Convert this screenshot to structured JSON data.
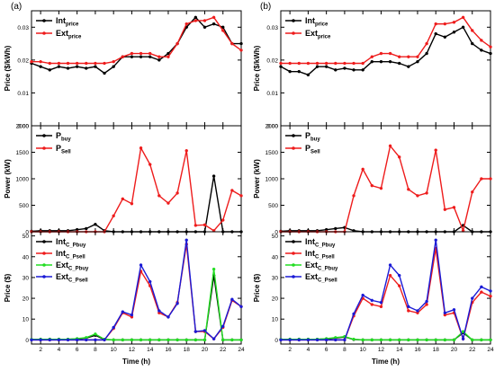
{
  "colors": {
    "black": "#000000",
    "red": "#ee1c1c",
    "green": "#22dd22",
    "blue": "#1a1ad6"
  },
  "chart_data": [
    {
      "type": "line",
      "panel_label": "(a)",
      "row": "price",
      "ylabel": "Price ($/kWh)",
      "ylim": [
        0,
        0.035
      ],
      "ytick_labels": [
        "0.00",
        "0.01",
        "0.02",
        "0.03"
      ],
      "xlim": [
        1,
        24
      ],
      "xticks": [
        2,
        4,
        6,
        8,
        10,
        12,
        14,
        16,
        18,
        20,
        22,
        24
      ],
      "legend": [
        {
          "main": "Int",
          "sub": "price"
        },
        {
          "main": "Ext",
          "sub": "price"
        }
      ],
      "series": [
        {
          "name": "Int_price",
          "color": "black",
          "values": [
            0.019,
            0.018,
            0.017,
            0.018,
            0.0175,
            0.018,
            0.0175,
            0.018,
            0.016,
            0.018,
            0.021,
            0.021,
            0.021,
            0.021,
            0.02,
            0.022,
            0.025,
            0.03,
            0.033,
            0.03,
            0.031,
            0.03,
            0.025,
            0.025
          ]
        },
        {
          "name": "Ext_price",
          "color": "red",
          "values": [
            0.0195,
            0.0195,
            0.019,
            0.019,
            0.019,
            0.019,
            0.019,
            0.019,
            0.019,
            0.0195,
            0.021,
            0.022,
            0.022,
            0.022,
            0.021,
            0.021,
            0.025,
            0.031,
            0.032,
            0.032,
            0.033,
            0.029,
            0.025,
            0.023
          ]
        }
      ]
    },
    {
      "type": "line",
      "panel_label": "(b)",
      "row": "price",
      "ylabel": "Price ($/kWh)",
      "ylim": [
        0,
        0.035
      ],
      "ytick_labels": [
        "0.00",
        "0.01",
        "0.02",
        "0.03"
      ],
      "xlim": [
        1,
        24
      ],
      "xticks": [
        2,
        4,
        6,
        8,
        10,
        12,
        14,
        16,
        18,
        20,
        22,
        24
      ],
      "legend": [
        {
          "main": "Int",
          "sub": "price"
        },
        {
          "main": "Ext",
          "sub": "price"
        }
      ],
      "series": [
        {
          "name": "Int_price",
          "color": "black",
          "values": [
            0.018,
            0.0165,
            0.0165,
            0.0155,
            0.018,
            0.018,
            0.017,
            0.0175,
            0.017,
            0.017,
            0.0195,
            0.0195,
            0.0195,
            0.019,
            0.018,
            0.0195,
            0.022,
            0.028,
            0.027,
            0.0285,
            0.03,
            0.025,
            0.023,
            0.022
          ]
        },
        {
          "name": "Ext_price",
          "color": "red",
          "values": [
            0.019,
            0.019,
            0.019,
            0.019,
            0.019,
            0.019,
            0.019,
            0.019,
            0.019,
            0.019,
            0.021,
            0.022,
            0.022,
            0.021,
            0.021,
            0.021,
            0.025,
            0.031,
            0.031,
            0.0315,
            0.033,
            0.029,
            0.026,
            0.024
          ]
        }
      ]
    },
    {
      "type": "line",
      "row": "power",
      "ylabel": "Power (kW)",
      "ylim": [
        0,
        2000
      ],
      "ytick_labels": [
        "0",
        "500",
        "1000",
        "1500",
        "2000"
      ],
      "xlim": [
        1,
        24
      ],
      "xticks": [
        2,
        4,
        6,
        8,
        10,
        12,
        14,
        16,
        18,
        20,
        22,
        24
      ],
      "legend": [
        {
          "main": "P",
          "sub": "buy"
        },
        {
          "main": "P",
          "sub": "Sell"
        }
      ],
      "series": [
        {
          "name": "P_buy",
          "color": "black",
          "values": [
            10,
            20,
            20,
            20,
            20,
            40,
            60,
            140,
            20,
            0,
            0,
            0,
            0,
            0,
            0,
            0,
            0,
            0,
            0,
            0,
            1050,
            0,
            0,
            0
          ]
        },
        {
          "name": "P_Sell",
          "color": "red",
          "values": [
            0,
            0,
            0,
            0,
            0,
            0,
            0,
            0,
            0,
            300,
            620,
            530,
            1580,
            1270,
            680,
            540,
            730,
            1530,
            120,
            130,
            20,
            220,
            780,
            680
          ]
        }
      ]
    },
    {
      "type": "line",
      "row": "power",
      "ylabel": "Power (kW)",
      "ylim": [
        0,
        2000
      ],
      "ytick_labels": [
        "0",
        "500",
        "1000",
        "1500",
        "2000"
      ],
      "xlim": [
        1,
        24
      ],
      "xticks": [
        2,
        4,
        6,
        8,
        10,
        12,
        14,
        16,
        18,
        20,
        22,
        24
      ],
      "legend": [
        {
          "main": "P",
          "sub": "buy"
        },
        {
          "main": "P",
          "sub": "Sell"
        }
      ],
      "series": [
        {
          "name": "P_buy",
          "color": "black",
          "values": [
            10,
            20,
            20,
            20,
            20,
            40,
            60,
            80,
            20,
            0,
            0,
            0,
            0,
            0,
            0,
            0,
            0,
            0,
            0,
            0,
            120,
            0,
            0,
            0
          ]
        },
        {
          "name": "P_Sell",
          "color": "red",
          "values": [
            0,
            0,
            0,
            0,
            0,
            0,
            0,
            0,
            680,
            1180,
            870,
            820,
            1620,
            1410,
            800,
            680,
            730,
            1540,
            420,
            460,
            20,
            750,
            1000,
            1000
          ]
        }
      ]
    },
    {
      "type": "line",
      "row": "cost",
      "ylabel": "Price ($)",
      "ylim": [
        -2,
        52
      ],
      "ytick_labels": [
        "0",
        "10",
        "20",
        "30",
        "40",
        "50"
      ],
      "xlim": [
        1,
        24
      ],
      "xticks": [
        2,
        4,
        6,
        8,
        10,
        12,
        14,
        16,
        18,
        20,
        22,
        24
      ],
      "xlabel": "Time (h)",
      "legend": [
        {
          "main": "Int",
          "sub": "C_Pbuy"
        },
        {
          "main": "Int",
          "sub": "C_Psell"
        },
        {
          "main": "Ext",
          "sub": "C_Pbuy"
        },
        {
          "main": "Ext",
          "sub": "C_Psell"
        }
      ],
      "series": [
        {
          "name": "Int_C_Pbuy",
          "color": "black",
          "values": [
            0.2,
            0.3,
            0.3,
            0.3,
            0.3,
            0.5,
            0.9,
            2.2,
            0.2,
            0,
            0,
            0,
            0,
            0,
            0,
            0,
            0,
            0,
            0,
            0,
            31,
            0,
            0,
            0
          ]
        },
        {
          "name": "Int_C_Psell",
          "color": "red",
          "values": [
            0,
            0,
            0,
            0,
            0,
            0,
            0,
            0,
            0,
            5.5,
            13,
            11,
            33,
            26,
            13,
            11,
            18,
            46,
            4,
            4,
            0.5,
            6,
            19,
            16
          ]
        },
        {
          "name": "Ext_C_Pbuy",
          "color": "green",
          "values": [
            0.2,
            0.3,
            0.3,
            0.3,
            0.3,
            0.6,
            1.1,
            2.8,
            0.3,
            0,
            0,
            0,
            0,
            0,
            0,
            0,
            0,
            0,
            0,
            0,
            34,
            0,
            0,
            0
          ]
        },
        {
          "name": "Ext_C_Psell",
          "color": "blue",
          "values": [
            0,
            0,
            0,
            0,
            0,
            0,
            0,
            0,
            0,
            6,
            13.5,
            12,
            36,
            28,
            14,
            11,
            17.5,
            48,
            4,
            4.5,
            0.5,
            6.5,
            19.5,
            16
          ]
        }
      ]
    },
    {
      "type": "line",
      "row": "cost",
      "ylabel": "Price ($)",
      "ylim": [
        -2,
        52
      ],
      "ytick_labels": [
        "0",
        "10",
        "20",
        "30",
        "40",
        "50"
      ],
      "xlim": [
        1,
        24
      ],
      "xticks": [
        2,
        4,
        6,
        8,
        10,
        12,
        14,
        16,
        18,
        20,
        22,
        24
      ],
      "xlabel": "Time (h)",
      "legend": [
        {
          "main": "Int",
          "sub": "C_Pbuy"
        },
        {
          "main": "Int",
          "sub": "C_Psell"
        },
        {
          "main": "Ext",
          "sub": "C_Pbuy"
        },
        {
          "main": "Ext",
          "sub": "C_Psell"
        }
      ],
      "series": [
        {
          "name": "Int_C_Pbuy",
          "color": "black",
          "values": [
            0.2,
            0.3,
            0.3,
            0.3,
            0.3,
            0.5,
            0.9,
            1.4,
            0.2,
            0,
            0,
            0,
            0,
            0,
            0,
            0,
            0,
            0,
            0,
            0,
            3.5,
            0,
            0,
            0
          ]
        },
        {
          "name": "Int_C_Psell",
          "color": "red",
          "values": [
            0,
            0,
            0,
            0,
            0,
            0,
            0,
            0,
            11.5,
            20,
            17,
            16,
            31,
            26,
            14,
            13,
            17,
            44,
            12,
            13,
            0.5,
            18,
            23,
            21
          ]
        },
        {
          "name": "Ext_C_Pbuy",
          "color": "green",
          "values": [
            0.2,
            0.3,
            0.3,
            0.3,
            0.3,
            0.6,
            1.1,
            1.6,
            0.3,
            0,
            0,
            0,
            0,
            0,
            0,
            0,
            0,
            0,
            0,
            0,
            4,
            0,
            0,
            0
          ]
        },
        {
          "name": "Ext_C_Psell",
          "color": "blue",
          "values": [
            0,
            0,
            0,
            0,
            0,
            0,
            0,
            0,
            12.5,
            21.5,
            19,
            18,
            36,
            31,
            16,
            14,
            18.5,
            48,
            13,
            14.5,
            0.5,
            20,
            25.5,
            23.5
          ]
        }
      ]
    }
  ]
}
